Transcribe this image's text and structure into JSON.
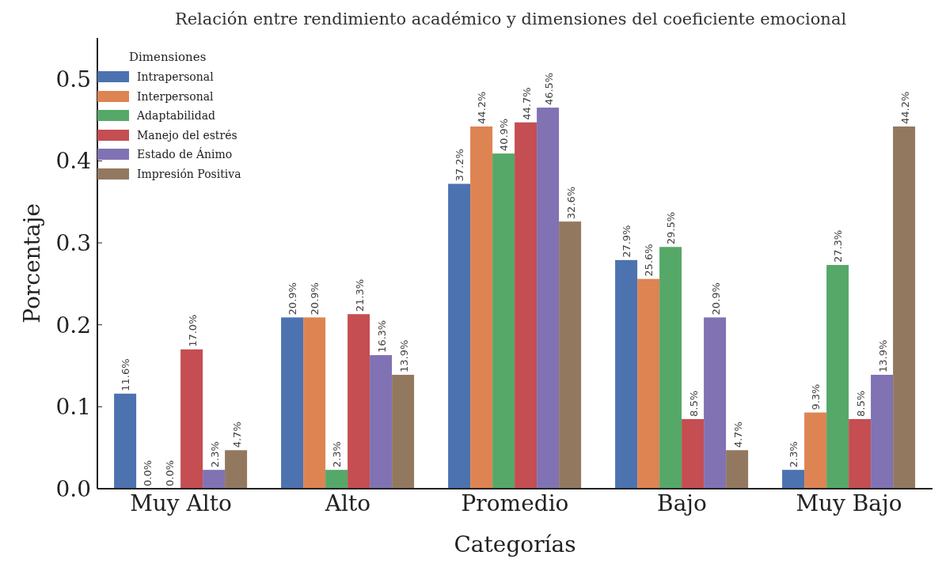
{
  "chart_data": {
    "type": "bar",
    "title": "Relación entre rendimiento académico y dimensiones del coeficiente emocional",
    "xlabel": "Categorías",
    "ylabel": "Porcentaje",
    "legend_title": "Dimensiones",
    "categories": [
      "Muy Alto",
      "Alto",
      "Promedio",
      "Bajo",
      "Muy Bajo"
    ],
    "ylim": [
      0,
      0.55
    ],
    "yticks": [
      {
        "value": 0,
        "label": "0.0"
      },
      0.1,
      0.2,
      0.3,
      0.4,
      0.5
    ],
    "grid": false,
    "legend": "top left",
    "series": [
      {
        "name": "Intrapersonal",
        "color": "#4c72b0",
        "values": [
          0.116,
          0.209,
          0.372,
          0.279,
          0.023
        ],
        "value_labels": [
          "11.6%",
          "20.9%",
          "37.2%",
          "27.9%",
          "2.3%"
        ]
      },
      {
        "name": "Interpersonal",
        "color": "#dd8452",
        "values": [
          0.0,
          0.209,
          0.442,
          0.256,
          0.093
        ],
        "value_labels": [
          "0.0%",
          "20.9%",
          "44.2%",
          "25.6%",
          "9.3%"
        ]
      },
      {
        "name": "Adaptabilidad",
        "color": "#55a868",
        "values": [
          0.0,
          0.023,
          0.409,
          0.295,
          0.273
        ],
        "value_labels": [
          "0.0%",
          "2.3%",
          "40.9%",
          "29.5%",
          "27.3%"
        ]
      },
      {
        "name": "Manejo del estrés",
        "color": "#c44e52",
        "values": [
          0.17,
          0.213,
          0.447,
          0.085,
          0.085
        ],
        "value_labels": [
          "17.0%",
          "21.3%",
          "44.7%",
          "8.5%",
          "8.5%"
        ]
      },
      {
        "name": "Estado de Ánimo",
        "color": "#8172b3",
        "values": [
          0.023,
          0.163,
          0.465,
          0.209,
          0.139
        ],
        "value_labels": [
          "2.3%",
          "16.3%",
          "46.5%",
          "20.9%",
          "13.9%"
        ]
      },
      {
        "name": "Impresión Positiva",
        "color": "#937860",
        "values": [
          0.047,
          0.139,
          0.326,
          0.047,
          0.442
        ],
        "value_labels": [
          "4.7%",
          "13.9%",
          "32.6%",
          "4.7%",
          "44.2%"
        ]
      }
    ]
  }
}
